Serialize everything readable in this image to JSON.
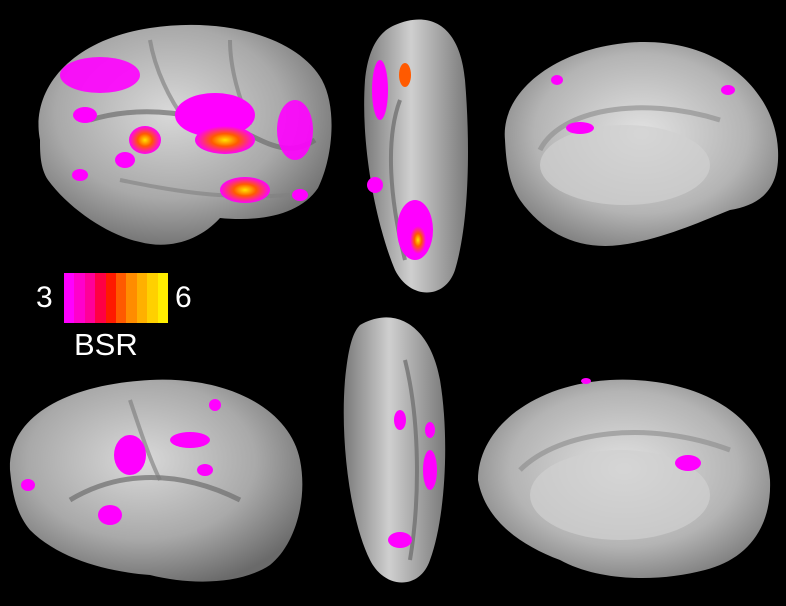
{
  "colorbar": {
    "min_label": "3",
    "max_label": "6",
    "title": "BSR",
    "colors": [
      "#ff00ff",
      "#ff00cc",
      "#ff0099",
      "#ff0044",
      "#ff1a00",
      "#ff5a00",
      "#ff8c00",
      "#ffb000",
      "#ffd000",
      "#ffee00"
    ]
  },
  "colors": {
    "background": "#000000",
    "cortex_light": "#d2d2d2",
    "cortex_dark": "#6a6a6a",
    "activation_low": "#ff00ff",
    "activation_high": "#ffe600"
  }
}
